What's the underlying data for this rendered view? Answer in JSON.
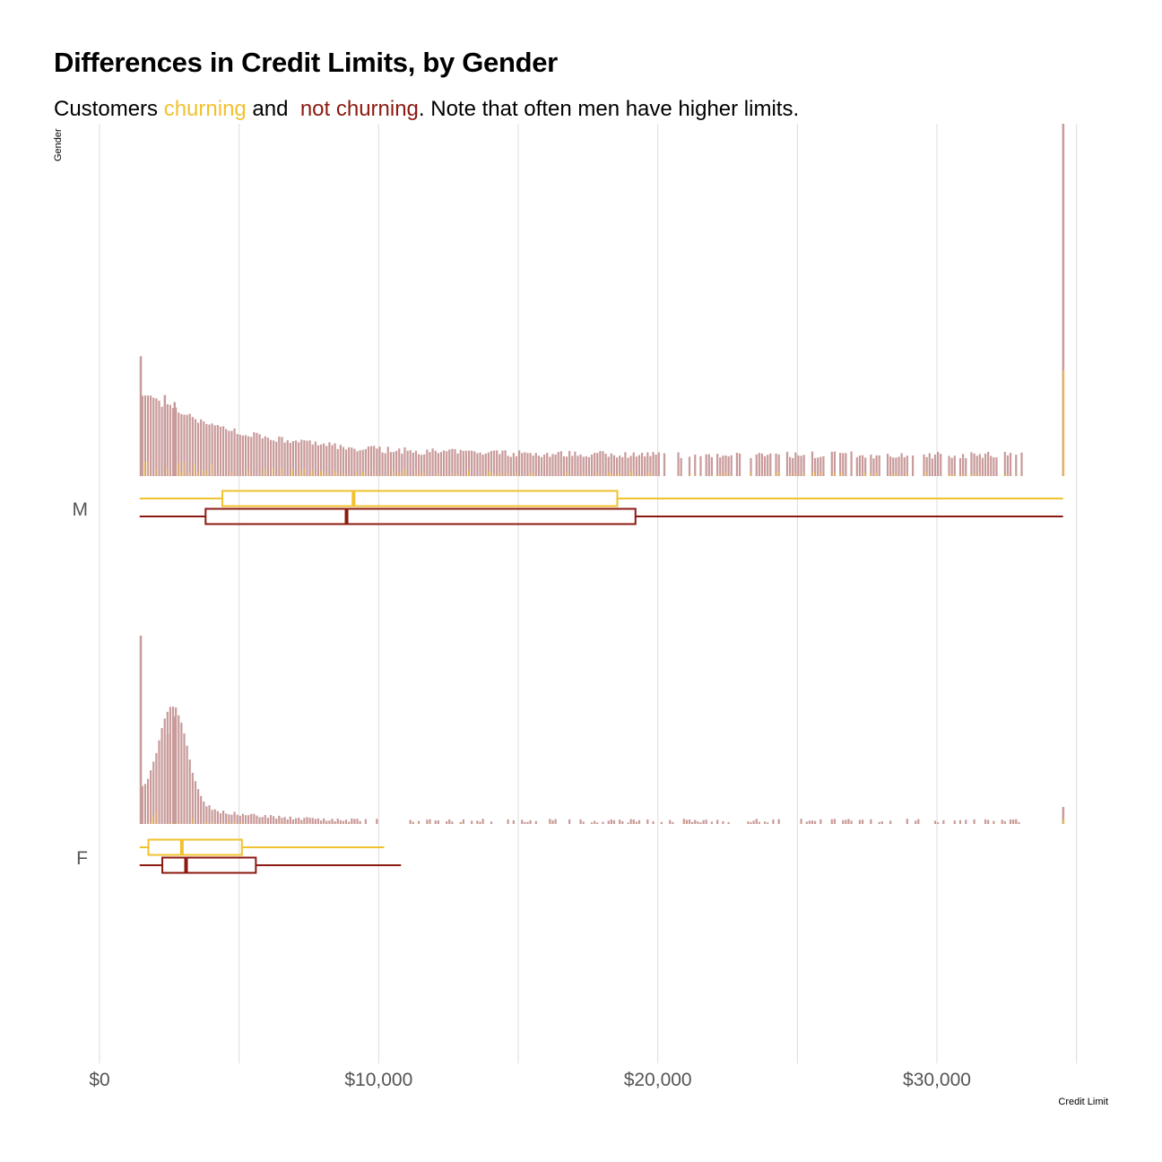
{
  "title": "Differences in Credit Limits, by Gender",
  "subtitle": {
    "prefix": "Customers ",
    "churning": "churning",
    "middle": " and  ",
    "not_churning": "not churning",
    "suffix": ". Note that often men have higher limits."
  },
  "colors": {
    "churning": "#f2c12e",
    "not_churning": "#8b1a10",
    "histogram": "#c99a9a",
    "grid": "#dcdcdc"
  },
  "chart_data": {
    "type": "histogram-boxplot",
    "xlabel": "Credit Limit",
    "ylabel": "Gender",
    "xlim": [
      0,
      35000
    ],
    "x_ticks": [
      0,
      10000,
      20000,
      30000
    ],
    "x_tick_labels": [
      "$0",
      "$10,000",
      "$20,000",
      "$30,000"
    ],
    "grid": true,
    "groups": [
      {
        "category": "M",
        "boxplots": [
          {
            "series": "churning",
            "min": 1438,
            "q1": 4400,
            "median": 9100,
            "q3": 18550,
            "max": 34516
          },
          {
            "series": "not churning",
            "min": 1438,
            "q1": 3800,
            "median": 8850,
            "q3": 19200,
            "max": 34516
          }
        ],
        "histogram": {
          "bin_start": 1500,
          "bin_end": 33000,
          "bin_width": 100,
          "peaks": [
            {
              "x": 1438,
              "rel_height": 0.34
            },
            {
              "x": 2300,
              "rel_height": 0.23
            },
            {
              "x": 2650,
              "rel_height": 0.21
            }
          ],
          "end_spike": {
            "x": 34516,
            "rel_height": 1.0
          }
        }
      },
      {
        "category": "F",
        "boxplots": [
          {
            "series": "churning",
            "min": 1438,
            "q1": 1750,
            "median": 2950,
            "q3": 5100,
            "max": 10200
          },
          {
            "series": "not churning",
            "min": 1438,
            "q1": 2250,
            "median": 3100,
            "q3": 5600,
            "max": 10800
          }
        ],
        "histogram": {
          "bin_start": 1500,
          "bin_end": 33000,
          "bin_width": 100,
          "peaks": [
            {
              "x": 1438,
              "rel_height": 1.0
            },
            {
              "x": 2650,
              "rel_height": 0.57
            },
            {
              "x": 2400,
              "rel_height": 0.48
            }
          ],
          "end_spike": {
            "x": 34516,
            "rel_height": 0.09
          }
        }
      }
    ]
  }
}
